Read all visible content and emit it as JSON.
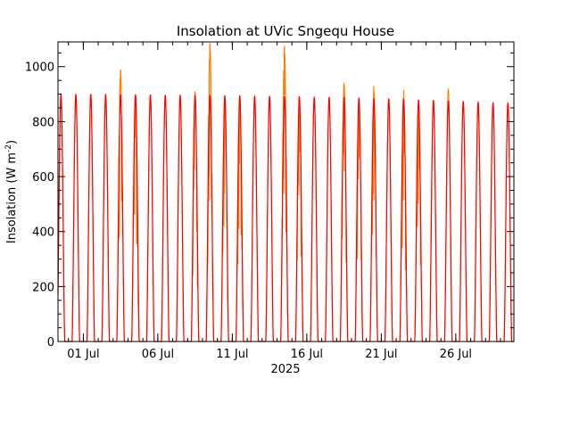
{
  "chart_data": {
    "type": "line",
    "title": "Insolation at UVic Sngequ House",
    "ylabel_main": "Insolation (W m",
    "ylabel_sup": "-2",
    "ylabel_close": ")",
    "xlabel": "2025",
    "ylim": [
      0,
      1090
    ],
    "xlim_days": [
      29.3,
      59.9
    ],
    "y_ticks": [
      0,
      200,
      400,
      600,
      800,
      1000
    ],
    "x_ticks": [
      {
        "day": 31,
        "label": "01 Jul"
      },
      {
        "day": 36,
        "label": "06 Jul"
      },
      {
        "day": 41,
        "label": "11 Jul"
      },
      {
        "day": 46,
        "label": "16 Jul"
      },
      {
        "day": 51,
        "label": "21 Jul"
      },
      {
        "day": 56,
        "label": "26 Jul"
      }
    ],
    "grid": false,
    "series": [
      {
        "color": "#ff7f00",
        "daily_peaks": [
          880,
          890,
          890,
          890,
          990,
          900,
          895,
          895,
          890,
          910,
          1085,
          890,
          895,
          885,
          885,
          1075,
          880,
          880,
          880,
          945,
          880,
          930,
          880,
          915,
          870,
          870,
          920,
          870,
          865,
          865,
          870
        ],
        "note_days_with_cloud_dips": [
          33,
          34,
          38,
          39,
          40,
          41,
          44,
          45,
          48,
          49,
          50,
          52,
          53
        ]
      },
      {
        "color": "#ff0000",
        "daily_peaks": [
          900,
          900,
          900,
          900,
          898,
          898,
          898,
          897,
          897,
          896,
          896,
          895,
          895,
          894,
          893,
          892,
          892,
          890,
          889,
          888,
          887,
          885,
          884,
          882,
          880,
          878,
          876,
          874,
          872,
          870,
          868
        ]
      }
    ]
  }
}
